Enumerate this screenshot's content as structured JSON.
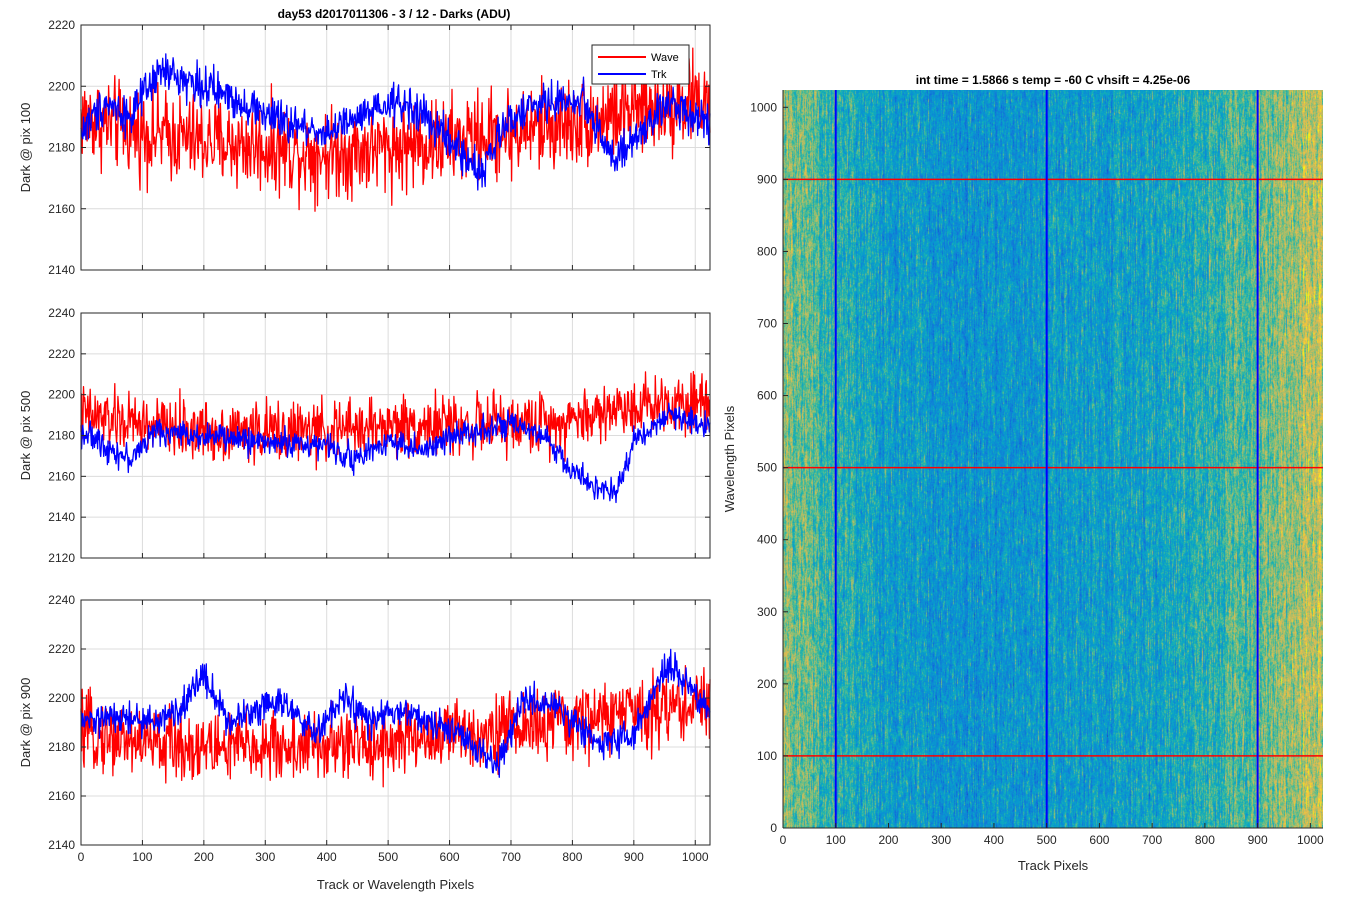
{
  "figure_title": "day53 d2017011306 - 3 / 12 - Darks (ADU)",
  "image_title": "int time = 1.5866 s    temp = -60 C    vhsift = 4.25e-06",
  "colors": {
    "wave": "#ff0000",
    "trk": "#0000ff",
    "grid": "#dcdcdc",
    "axis": "#262626"
  },
  "chart_data": [
    {
      "type": "line",
      "ylabel": "Dark @ pix 100",
      "xlim": [
        0,
        1024
      ],
      "ylim": [
        2140,
        2220
      ],
      "xticks": [
        0,
        100,
        200,
        300,
        400,
        500,
        600,
        700,
        800,
        900,
        1000
      ],
      "xticklabels": [],
      "yticks": [
        2140,
        2160,
        2180,
        2200,
        2220
      ],
      "grid": true,
      "legend": {
        "position": "top-right",
        "entries": [
          "Wave",
          "Trk"
        ]
      },
      "series": [
        {
          "name": "Wave",
          "color": "#ff0000",
          "x": [
            0,
            100,
            200,
            300,
            400,
            500,
            600,
            700,
            800,
            900,
            1024
          ],
          "values": [
            2190,
            2185,
            2182,
            2180,
            2178,
            2180,
            2182,
            2185,
            2188,
            2192,
            2196
          ],
          "noise": 9
        },
        {
          "name": "Trk",
          "color": "#0000ff",
          "x": [
            0,
            40,
            80,
            130,
            200,
            260,
            330,
            400,
            460,
            520,
            560,
            610,
            650,
            700,
            760,
            820,
            870,
            900,
            960,
            1024
          ],
          "values": [
            2185,
            2195,
            2190,
            2205,
            2200,
            2195,
            2188,
            2185,
            2190,
            2195,
            2190,
            2180,
            2172,
            2190,
            2195,
            2195,
            2175,
            2182,
            2195,
            2188
          ],
          "noise": 4
        }
      ]
    },
    {
      "type": "line",
      "ylabel": "Dark @ pix 500",
      "xlim": [
        0,
        1024
      ],
      "ylim": [
        2120,
        2240
      ],
      "xticks": [
        0,
        100,
        200,
        300,
        400,
        500,
        600,
        700,
        800,
        900,
        1000
      ],
      "xticklabels": [],
      "yticks": [
        2120,
        2140,
        2160,
        2180,
        2200,
        2220,
        2240
      ],
      "grid": true,
      "series": [
        {
          "name": "Wave",
          "color": "#ff0000",
          "x": [
            0,
            100,
            200,
            300,
            400,
            500,
            600,
            700,
            800,
            900,
            1024
          ],
          "values": [
            2190,
            2185,
            2182,
            2182,
            2182,
            2185,
            2185,
            2185,
            2188,
            2195,
            2198
          ],
          "noise": 9
        },
        {
          "name": "Trk",
          "color": "#0000ff",
          "x": [
            0,
            40,
            80,
            120,
            200,
            300,
            400,
            450,
            500,
            560,
            620,
            700,
            760,
            800,
            840,
            870,
            900,
            960,
            1024
          ],
          "values": [
            2182,
            2175,
            2168,
            2182,
            2180,
            2177,
            2175,
            2168,
            2178,
            2172,
            2182,
            2185,
            2178,
            2162,
            2155,
            2150,
            2178,
            2190,
            2185
          ],
          "noise": 4
        }
      ]
    },
    {
      "type": "line",
      "ylabel": "Dark @ pix 900",
      "xlabel": "Track or Wavelength Pixels",
      "xlim": [
        0,
        1024
      ],
      "ylim": [
        2140,
        2240
      ],
      "xticks": [
        0,
        100,
        200,
        300,
        400,
        500,
        600,
        700,
        800,
        900,
        1000
      ],
      "xticklabels": [
        "0",
        "100",
        "200",
        "300",
        "400",
        "500",
        "600",
        "700",
        "800",
        "900",
        "1000"
      ],
      "yticks": [
        2140,
        2160,
        2180,
        2200,
        2220,
        2240
      ],
      "grid": true,
      "series": [
        {
          "name": "Wave",
          "color": "#ff0000",
          "x": [
            0,
            100,
            200,
            300,
            400,
            500,
            600,
            700,
            800,
            900,
            1024
          ],
          "values": [
            2186,
            2182,
            2180,
            2180,
            2180,
            2182,
            2185,
            2188,
            2190,
            2195,
            2198
          ],
          "noise": 9
        },
        {
          "name": "Trk",
          "color": "#0000ff",
          "x": [
            0,
            60,
            120,
            160,
            200,
            240,
            280,
            320,
            380,
            430,
            470,
            520,
            560,
            620,
            680,
            720,
            780,
            840,
            900,
            960,
            1000,
            1024
          ],
          "values": [
            2190,
            2192,
            2190,
            2195,
            2210,
            2190,
            2195,
            2200,
            2185,
            2200,
            2190,
            2195,
            2190,
            2185,
            2172,
            2200,
            2195,
            2182,
            2185,
            2215,
            2200,
            2195
          ],
          "noise": 4
        }
      ]
    },
    {
      "type": "heatmap",
      "xlabel": "Track Pixels",
      "ylabel": "Wavelength Pixels",
      "xlim": [
        0,
        1024
      ],
      "ylim": [
        0,
        1024
      ],
      "xticks": [
        0,
        100,
        200,
        300,
        400,
        500,
        600,
        700,
        800,
        900,
        1000
      ],
      "xticklabels": [
        "0",
        "100",
        "200",
        "300",
        "400",
        "500",
        "600",
        "700",
        "800",
        "900",
        "1000"
      ],
      "yticks": [
        0,
        100,
        200,
        300,
        400,
        500,
        600,
        700,
        800,
        900,
        1000
      ],
      "yticklabels": [
        "0",
        "100",
        "200",
        "300",
        "400",
        "500",
        "600",
        "700",
        "800",
        "900",
        "1000"
      ],
      "colormap": "parula",
      "column_level_profile": {
        "x": [
          0,
          100,
          200,
          300,
          400,
          500,
          600,
          700,
          800,
          900,
          1000,
          1024
        ],
        "level": [
          0.72,
          0.55,
          0.45,
          0.42,
          0.4,
          0.44,
          0.45,
          0.48,
          0.55,
          0.65,
          0.78,
          0.8
        ]
      },
      "vertical_markers": {
        "color": "#0000ff",
        "x": [
          100,
          500,
          900
        ]
      },
      "horizontal_markers": {
        "color": "#ff0000",
        "y": [
          100,
          500,
          900
        ]
      }
    }
  ]
}
